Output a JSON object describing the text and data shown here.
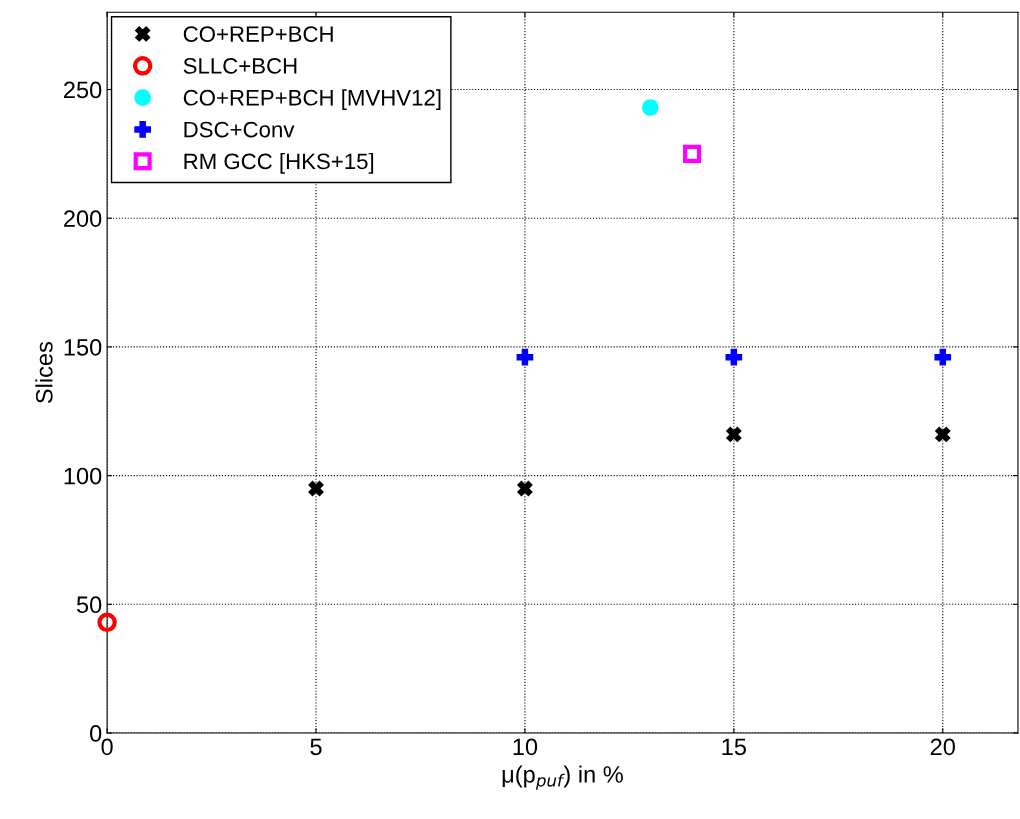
{
  "chart_data": {
    "type": "scatter",
    "xlabel": "μ(p$_{puf}$) in %",
    "ylabel": "Slices",
    "xlim": [
      0,
      21.8
    ],
    "ylim": [
      0,
      280
    ],
    "xticks": [
      0,
      5,
      10,
      15,
      20
    ],
    "yticks": [
      0,
      50,
      100,
      150,
      200,
      250
    ],
    "grid": true,
    "legend": "top left",
    "series": [
      {
        "name": "CO+REP+BCH",
        "color": "#000000",
        "marker": "cross",
        "x": [
          5,
          10,
          15,
          20
        ],
        "values": [
          95,
          95,
          116,
          116
        ]
      },
      {
        "name": "SLLC+BCH",
        "color": "#ff0000",
        "marker": "circle",
        "x": [
          0
        ],
        "values": [
          43
        ]
      },
      {
        "name": "CO+REP+BCH [MVHV12]",
        "color": "#00ffff",
        "marker": "circle",
        "x": [
          13
        ],
        "values": [
          243
        ]
      },
      {
        "name": "DSC+Conv",
        "color": "#0000ff",
        "marker": "plus",
        "x": [
          10,
          15,
          20
        ],
        "values": [
          146,
          146,
          146
        ]
      },
      {
        "name": "RM GCC [HKS+15]",
        "color": "#ff00ff",
        "marker": "square",
        "x": [
          14
        ],
        "values": [
          225
        ]
      }
    ]
  }
}
